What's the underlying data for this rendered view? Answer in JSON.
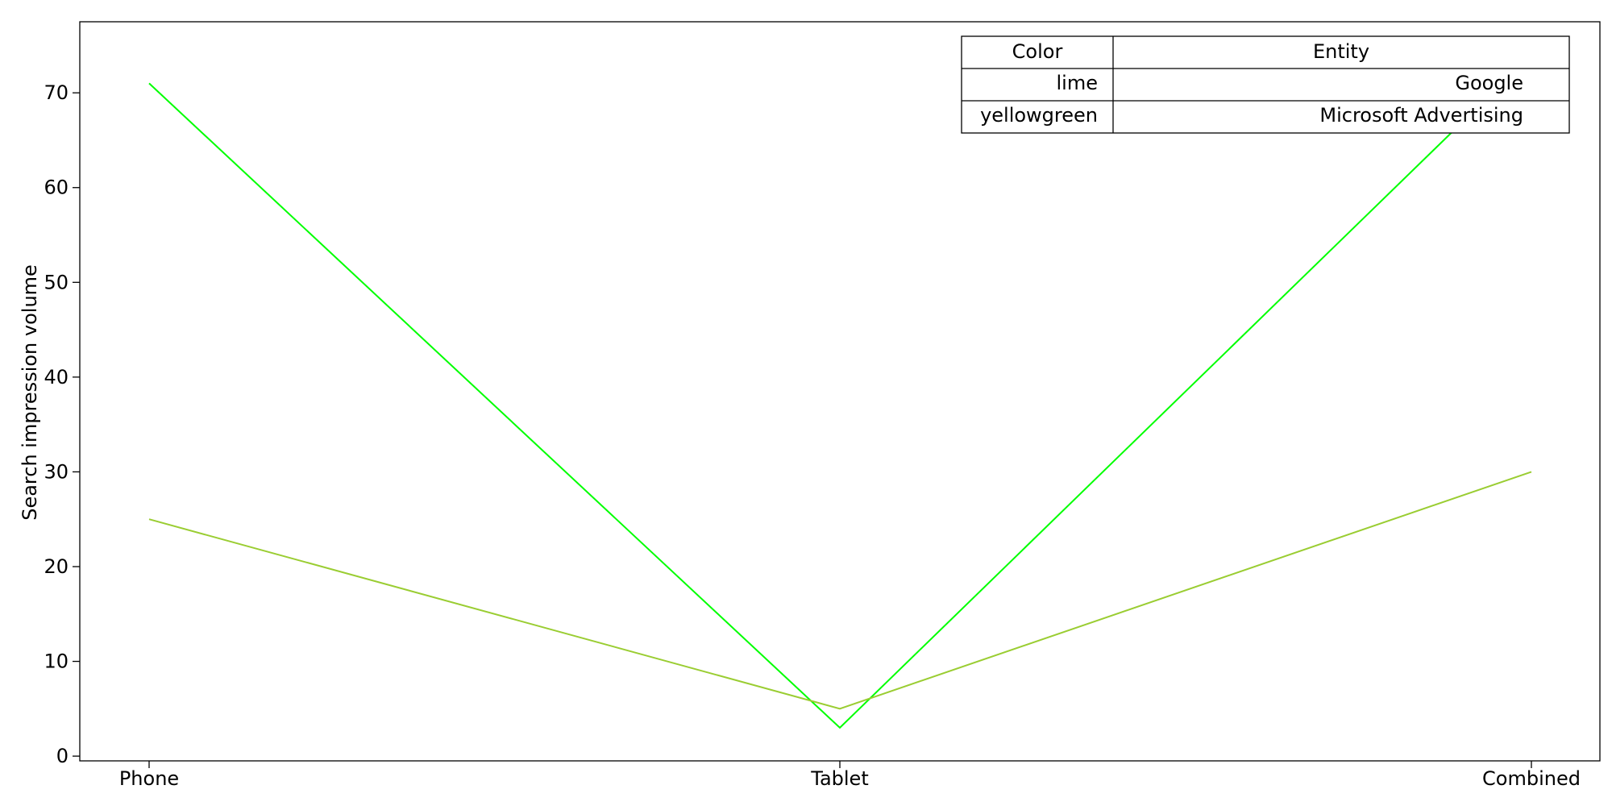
{
  "chart_data": {
    "type": "line",
    "categories": [
      "Phone",
      "Tablet",
      "Combined"
    ],
    "series": [
      {
        "name": "Google",
        "color": "#00ff00",
        "values": [
          71,
          3,
          74
        ]
      },
      {
        "name": "Microsoft Advertising",
        "color": "#9acd32",
        "values": [
          25,
          5,
          30
        ]
      }
    ],
    "title": "",
    "xlabel": "",
    "ylabel": "Search impression volume",
    "ylim": [
      -0.5,
      77.5
    ],
    "yticks": [
      0,
      10,
      20,
      30,
      40,
      50,
      60,
      70
    ],
    "grid": false,
    "legend": {
      "placement": "top-right",
      "header": {
        "color": "Color",
        "entity": "Entity"
      },
      "rows": [
        {
          "color_name": "lime",
          "entity": "Google"
        },
        {
          "color_name": "yellowgreen",
          "entity": "Microsoft Advertising"
        }
      ]
    }
  }
}
